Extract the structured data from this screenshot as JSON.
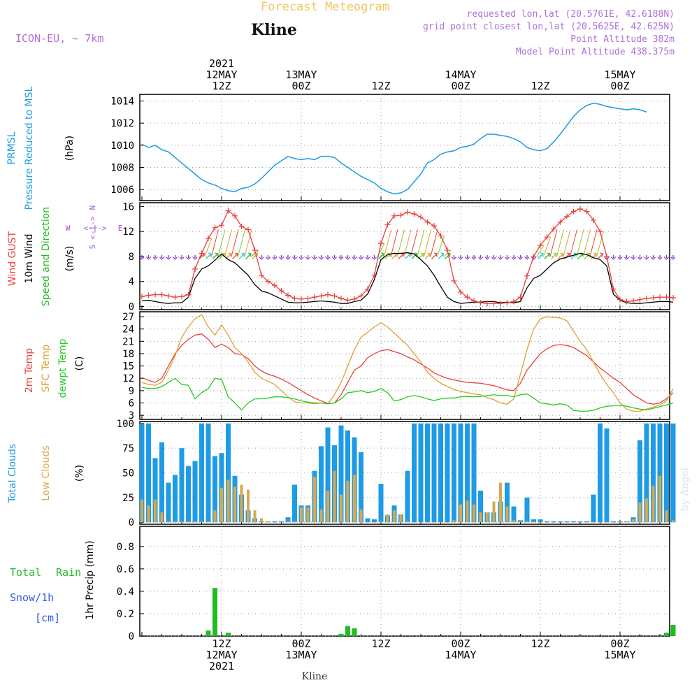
{
  "header": {
    "title": "Forecast Meteogram",
    "location": "Kline",
    "model": "ICON-EU, ~ 7km",
    "requested": "requested lon,lat (20.5761E, 42.6188N)",
    "grid_point": "grid point closest lon,lat (20.5625E, 42.625N)",
    "point_altitude": "Point Altitude 382m",
    "model_altitude": "Model Point Altitude 438.375m",
    "watermark": "by Angel",
    "footer_location": "Kline"
  },
  "time_axis": {
    "top_labels": [
      {
        "hour": 12,
        "lines": [
          "2021",
          "12MAY",
          "12Z"
        ]
      },
      {
        "hour": 24,
        "lines": [
          "13MAY",
          "00Z"
        ]
      },
      {
        "hour": 36,
        "lines": [
          "12Z"
        ]
      },
      {
        "hour": 48,
        "lines": [
          "14MAY",
          "00Z"
        ]
      },
      {
        "hour": 60,
        "lines": [
          "12Z"
        ]
      },
      {
        "hour": 72,
        "lines": [
          "15MAY",
          "00Z"
        ]
      }
    ],
    "bottom_labels": [
      {
        "hour": 12,
        "lines": [
          "12Z",
          "12MAY",
          "2021"
        ]
      },
      {
        "hour": 24,
        "lines": [
          "00Z",
          "13MAY"
        ]
      },
      {
        "hour": 36,
        "lines": [
          "12Z"
        ]
      },
      {
        "hour": 48,
        "lines": [
          "00Z",
          "14MAY"
        ]
      },
      {
        "hour": 60,
        "lines": [
          "12Z"
        ]
      },
      {
        "hour": 72,
        "lines": [
          "00Z",
          "15MAY"
        ]
      }
    ]
  },
  "colors": {
    "pressure": "#1e9be6",
    "gust": "#e8403c",
    "wind": "#000000",
    "wind_dir": "#22bb22",
    "temp2m": "#e8403c",
    "sfc_temp": "#e0a030",
    "dewpt": "#22cc22",
    "total_clouds": "#1e9be6",
    "low_clouds": "#d8a850",
    "rain": "#22bb22",
    "snow": "#3355ee",
    "title": "#f0c860",
    "info": "#b070d8",
    "compass": "#a050d0"
  },
  "chart_data": [
    {
      "type": "line",
      "panel": "pressure",
      "label_lines": [
        "PRMSL",
        "Pressure Reduced to MSL"
      ],
      "unit": "(hPa)",
      "yticks": [
        1006,
        1008,
        1010,
        1012,
        1014
      ],
      "ylim": [
        1005,
        1014.6
      ],
      "series": [
        {
          "values": [
            1010.1,
            1009.8,
            1010.0,
            1009.6,
            1009.4,
            1008.9,
            1008.4,
            1007.9,
            1007.4,
            1006.9,
            1006.6,
            1006.4,
            1006.1,
            1005.9,
            1005.8,
            1006.1,
            1006.2,
            1006.5,
            1007.0,
            1007.6,
            1008.2,
            1008.6,
            1009.0,
            1008.8,
            1008.7,
            1008.8,
            1008.7,
            1009.0,
            1009.0,
            1008.9,
            1008.4,
            1008.0,
            1007.6,
            1007.2,
            1006.9,
            1006.6,
            1006.1,
            1005.8,
            1005.6,
            1005.7,
            1006.0,
            1006.7,
            1007.4,
            1008.4,
            1008.7,
            1009.2,
            1009.4,
            1009.5,
            1009.8,
            1009.9,
            1010.1,
            1010.6,
            1011.0,
            1011.0,
            1010.9,
            1010.8,
            1010.6,
            1010.3,
            1009.8,
            1009.6,
            1009.5,
            1009.7,
            1010.3,
            1011.0,
            1011.8,
            1012.6,
            1013.2,
            1013.6,
            1013.8,
            1013.7,
            1013.5,
            1013.4,
            1013.3,
            1013.2,
            1013.3,
            1013.2,
            1013.0
          ]
        }
      ]
    },
    {
      "type": "line",
      "panel": "wind",
      "label_lines": [
        "Wind GUST",
        "10m Wind",
        "Speed and Direction"
      ],
      "unit": "(m/s)",
      "compass": {
        "n": "N",
        "s": "S",
        "e": "E",
        "w": "W",
        "dashes": "<-|->"
      },
      "yticks": [
        0,
        4,
        8,
        12,
        16
      ],
      "ylim": [
        -0.5,
        16.6
      ],
      "series": [
        {
          "values": [
            1.6,
            1.8,
            1.9,
            1.9,
            1.7,
            1.5,
            1.6,
            1.9,
            6.0,
            8.5,
            10.9,
            12.6,
            13.0,
            15.3,
            14.5,
            12.8,
            12.3,
            9.0,
            5.0,
            4.0,
            3.4,
            2.5,
            1.8,
            1.3,
            1.2,
            1.3,
            1.5,
            1.7,
            1.9,
            1.7,
            1.3,
            1.0,
            1.2,
            1.7,
            2.8,
            5.0,
            10.1,
            13.1,
            14.5,
            14.6,
            15.1,
            14.8,
            14.3,
            13.5,
            12.9,
            11.3,
            9.0,
            4.1,
            2.3,
            1.5,
            0.9,
            0.6,
            0.5,
            0.5,
            0.5,
            0.6,
            0.8,
            1.5,
            4.9,
            8.0,
            9.8,
            11.1,
            12.4,
            13.5,
            14.4,
            15.2,
            15.6,
            15.2,
            13.8,
            12.0,
            8.0,
            2.8,
            1.1,
            0.8,
            0.9,
            1.1,
            1.3,
            1.4,
            1.5,
            1.5,
            1.4
          ]
        },
        {
          "values": [
            0.9,
            1.0,
            0.8,
            0.6,
            0.5,
            0.6,
            0.6,
            1.5,
            4.5,
            6.0,
            6.5,
            7.4,
            8.4,
            7.5,
            7.0,
            6.0,
            5.0,
            3.5,
            2.5,
            2.2,
            1.7,
            1.2,
            0.7,
            0.6,
            0.6,
            0.7,
            0.8,
            0.9,
            0.8,
            0.7,
            0.5,
            0.5,
            0.8,
            1.0,
            2.0,
            4.3,
            7.5,
            8.3,
            8.5,
            8.5,
            8.6,
            8.4,
            7.5,
            6.5,
            5.0,
            3.2,
            1.5,
            0.8,
            0.5,
            0.6,
            0.7,
            0.7,
            0.8,
            0.8,
            0.6,
            0.7,
            0.6,
            0.8,
            3.0,
            4.5,
            5.0,
            6.0,
            7.0,
            7.6,
            7.9,
            8.2,
            8.5,
            8.3,
            7.8,
            7.5,
            6.5,
            2.0,
            1.0,
            0.6,
            0.5,
            0.5,
            0.6,
            0.7,
            0.8,
            0.8,
            0.7
          ]
        }
      ]
    },
    {
      "type": "line",
      "panel": "temperature",
      "label_lines": [
        "2m Temp",
        "SFC Temp",
        "dewpt Temp"
      ],
      "unit": "(C)",
      "yticks": [
        3,
        6,
        9,
        12,
        15,
        18,
        21,
        24,
        27
      ],
      "ylim": [
        2.0,
        28.2
      ],
      "series": [
        {
          "values": [
            12.2,
            11.5,
            11.0,
            12.0,
            15.0,
            18.0,
            20.0,
            21.5,
            22.5,
            22.8,
            21.5,
            19.5,
            20.3,
            19.5,
            18.0,
            17.8,
            16.8,
            15.0,
            13.8,
            13.0,
            12.5,
            11.8,
            11.0,
            10.0,
            9.0,
            8.0,
            7.2,
            6.5,
            5.9,
            6.0,
            8.0,
            11.0,
            14.0,
            15.0,
            17.0,
            18.0,
            18.7,
            19.0,
            18.5,
            18.0,
            17.2,
            16.5,
            15.5,
            14.5,
            13.3,
            12.6,
            12.0,
            11.6,
            11.3,
            11.0,
            10.9,
            10.8,
            10.5,
            10.2,
            9.7,
            9.2,
            9.0,
            10.8,
            14.0,
            16.0,
            18.0,
            19.2,
            20.0,
            20.2,
            20.0,
            19.5,
            18.5,
            17.5,
            16.0,
            14.5,
            13.3,
            12.0,
            11.0,
            9.5,
            8.0,
            7.0,
            6.0,
            5.7,
            6.0,
            7.0,
            8.5
          ]
        },
        {
          "values": [
            11.0,
            10.5,
            10.3,
            11.0,
            14.0,
            17.5,
            22.0,
            24.5,
            26.5,
            27.5,
            24.5,
            22.5,
            25.0,
            22.5,
            19.5,
            18.0,
            16.0,
            13.5,
            12.0,
            11.3,
            10.5,
            9.0,
            7.5,
            6.3,
            6.0,
            6.0,
            5.8,
            6.0,
            5.8,
            8.0,
            11.0,
            15.0,
            19.0,
            22.0,
            23.2,
            24.5,
            25.5,
            24.5,
            23.0,
            21.5,
            20.0,
            18.0,
            16.0,
            13.5,
            12.0,
            10.8,
            10.0,
            9.3,
            8.8,
            8.5,
            8.2,
            8.0,
            7.3,
            6.8,
            6.0,
            5.7,
            7.0,
            13.0,
            19.0,
            24.0,
            26.5,
            27.0,
            26.8,
            26.7,
            26.0,
            23.5,
            21.0,
            19.0,
            16.0,
            13.0,
            10.5,
            8.5,
            6.0,
            4.5,
            4.0,
            4.0,
            4.5,
            5.0,
            5.5,
            6.5,
            9.5
          ]
        },
        {
          "values": [
            9.8,
            9.5,
            9.5,
            10.0,
            11.0,
            12.0,
            10.5,
            10.3,
            7.0,
            8.5,
            9.5,
            12.0,
            11.7,
            7.5,
            6.0,
            4.3,
            6.0,
            7.0,
            7.0,
            7.2,
            7.5,
            7.5,
            7.3,
            7.0,
            6.5,
            6.2,
            6.0,
            6.0,
            5.8,
            6.0,
            7.0,
            8.5,
            8.7,
            9.0,
            8.5,
            8.8,
            9.5,
            8.5,
            6.5,
            6.8,
            7.5,
            7.8,
            7.5,
            7.0,
            6.6,
            7.0,
            7.2,
            7.2,
            7.5,
            7.6,
            7.5,
            7.6,
            7.8,
            8.0,
            7.8,
            7.8,
            7.5,
            8.0,
            8.2,
            7.2,
            6.0,
            5.8,
            5.5,
            5.8,
            5.5,
            4.2,
            4.0,
            4.0,
            4.2,
            4.8,
            5.2,
            5.3,
            5.5,
            5.2,
            4.8,
            4.5,
            4.3,
            4.7,
            5.1,
            5.5,
            6.0
          ]
        }
      ]
    },
    {
      "type": "bar",
      "panel": "clouds",
      "label_lines": [
        "Total Clouds",
        "Low Clouds"
      ],
      "unit": "(%)",
      "yticks": [
        0,
        25,
        50,
        75,
        100
      ],
      "ylim": [
        -2,
        102
      ],
      "series": [
        {
          "values": [
            100,
            100,
            65,
            81,
            40,
            48,
            75,
            57,
            62,
            100,
            100,
            67,
            70,
            100,
            47,
            28,
            12,
            4,
            1,
            1,
            1,
            1,
            5,
            38,
            17,
            17,
            52,
            77,
            96,
            78,
            98,
            93,
            86,
            71,
            4,
            3,
            39,
            7,
            17,
            8,
            52,
            100,
            100,
            100,
            100,
            100,
            100,
            100,
            100,
            100,
            100,
            32,
            10,
            10,
            21,
            40,
            16,
            2,
            25,
            3,
            3,
            1,
            1,
            1,
            1,
            1,
            1,
            1,
            28,
            100,
            95,
            1,
            1,
            1,
            5,
            83,
            100,
            100,
            100,
            100,
            100
          ]
        },
        {
          "values": [
            23,
            17,
            23,
            10,
            1,
            1,
            1,
            1,
            1,
            1,
            1,
            12,
            35,
            43,
            36,
            38,
            33,
            12,
            4,
            1,
            0,
            0,
            1,
            1,
            15,
            15,
            46,
            13,
            32,
            52,
            28,
            42,
            48,
            13,
            0,
            0,
            1,
            8,
            12,
            8,
            1,
            0,
            0,
            0,
            0,
            0,
            0,
            2,
            18,
            22,
            18,
            10,
            10,
            21,
            40,
            16,
            2,
            1,
            1,
            1,
            0,
            0,
            0,
            0,
            0,
            0,
            0,
            0,
            0,
            0,
            0,
            0,
            1,
            1,
            3,
            20,
            24,
            37,
            47,
            12,
            2
          ]
        }
      ]
    },
    {
      "type": "bar",
      "panel": "precipitation",
      "legend_total": "Total",
      "legend_rain": "Rain",
      "legend_snow": "Snow/1h",
      "legend_snow_unit": "[cm]",
      "ylabel": "1hr Precip (mm)",
      "yticks": [
        0,
        0.2,
        0.4,
        0.6,
        0.8
      ],
      "ylim": [
        0,
        0.98
      ],
      "series": [
        {
          "points": [
            [
              10,
              0.05
            ],
            [
              11,
              0.43
            ],
            [
              13,
              0.03
            ],
            [
              30,
              0.02
            ],
            [
              31,
              0.09
            ],
            [
              32,
              0.07
            ],
            [
              79,
              0.03
            ],
            [
              80,
              0.1
            ]
          ]
        }
      ]
    }
  ]
}
